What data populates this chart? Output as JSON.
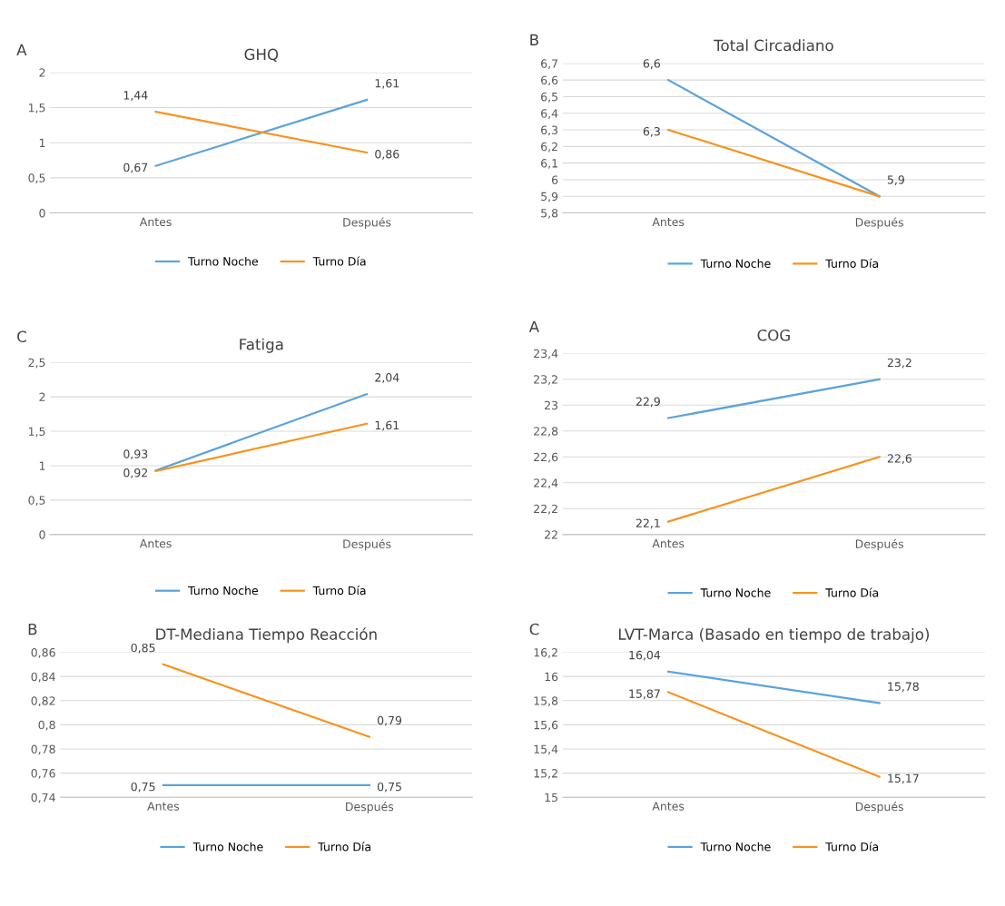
{
  "chart_data": [
    {
      "type": "line",
      "title": "GHQ",
      "annotations": [
        "A"
      ],
      "categories": [
        "Antes",
        "Después"
      ],
      "ylim": [
        0,
        2
      ],
      "yticks": [
        0,
        {
          "value": 0.5,
          "label": "0,5"
        },
        1,
        {
          "value": 1.5,
          "label": "1,5"
        },
        2
      ],
      "grid": "y",
      "legend": "bottom",
      "marker": "none",
      "line_style": "solid",
      "series": [
        {
          "name": "Turno Noche",
          "color": "#5ba3dc",
          "values": [
            0.67,
            1.61
          ],
          "value_labels": [
            "0,67",
            "1,61"
          ]
        },
        {
          "name": "Turno Día",
          "color": "#f7931e",
          "values": [
            1.44,
            0.86
          ],
          "value_labels": [
            "1,44",
            "0,86"
          ]
        }
      ]
    },
    {
      "type": "line",
      "title": "Total Circadiano",
      "annotations": [
        "B"
      ],
      "categories": [
        "Antes",
        "Después"
      ],
      "ylim": [
        5.8,
        6.7
      ],
      "yticks": [
        {
          "value": 5.8,
          "label": "5,8"
        },
        {
          "value": 5.9,
          "label": "5,9"
        },
        {
          "value": 6.0,
          "label": "6"
        },
        {
          "value": 6.1,
          "label": "6,1"
        },
        {
          "value": 6.2,
          "label": "6,2"
        },
        {
          "value": 6.3,
          "label": "6,3"
        },
        {
          "value": 6.4,
          "label": "6,4"
        },
        {
          "value": 6.5,
          "label": "6,5"
        },
        {
          "value": 6.6,
          "label": "6,6"
        },
        {
          "value": 6.7,
          "label": "6,7"
        }
      ],
      "grid": "y",
      "legend": "bottom",
      "marker": "none",
      "line_style": "solid",
      "series": [
        {
          "name": "Turno Noche",
          "color": "#5ba3dc",
          "values": [
            6.6,
            5.9
          ],
          "value_labels": [
            "6,6",
            "5,9"
          ]
        },
        {
          "name": "Turno Día",
          "color": "#f7931e",
          "values": [
            6.3,
            5.9
          ],
          "value_labels": [
            "6,3",
            null
          ]
        }
      ]
    },
    {
      "type": "line",
      "title": "Fatiga",
      "annotations": [
        "C"
      ],
      "categories": [
        "Antes",
        "Después"
      ],
      "ylim": [
        0,
        2.5
      ],
      "yticks": [
        0,
        {
          "value": 0.5,
          "label": "0,5"
        },
        1,
        {
          "value": 1.5,
          "label": "1,5"
        },
        2,
        {
          "value": 2.5,
          "label": "2,5"
        }
      ],
      "grid": "y",
      "legend": "bottom",
      "marker": "none",
      "line_style": "solid",
      "series": [
        {
          "name": "Turno Noche",
          "color": "#5ba3dc",
          "values": [
            0.93,
            2.04
          ],
          "value_labels": [
            "0,93",
            "2,04"
          ]
        },
        {
          "name": "Turno Día",
          "color": "#f7931e",
          "values": [
            0.92,
            1.61
          ],
          "value_labels": [
            "0,92",
            "1,61"
          ]
        }
      ]
    },
    {
      "type": "line",
      "title": "COG",
      "annotations": [
        "A"
      ],
      "categories": [
        "Antes",
        "Después"
      ],
      "ylim": [
        22,
        23.4
      ],
      "yticks": [
        22,
        {
          "value": 22.2,
          "label": "22,2"
        },
        {
          "value": 22.4,
          "label": "22,4"
        },
        {
          "value": 22.6,
          "label": "22,6"
        },
        {
          "value": 22.8,
          "label": "22,8"
        },
        23,
        {
          "value": 23.2,
          "label": "23,2"
        },
        {
          "value": 23.4,
          "label": "23,4"
        }
      ],
      "grid": "y",
      "legend": "bottom",
      "marker": "none",
      "line_style": "solid",
      "series": [
        {
          "name": "Turno Noche",
          "color": "#5ba3dc",
          "values": [
            22.9,
            23.2
          ],
          "value_labels": [
            "22,9",
            "23,2"
          ]
        },
        {
          "name": "Turno Día",
          "color": "#f7931e",
          "values": [
            22.1,
            22.6
          ],
          "value_labels": [
            "22,1",
            "22,6"
          ]
        }
      ]
    },
    {
      "type": "line",
      "title": "DT-Mediana Tiempo Reacción",
      "annotations": [
        "B"
      ],
      "categories": [
        "Antes",
        "Después"
      ],
      "ylim": [
        0.74,
        0.86
      ],
      "yticks": [
        {
          "value": 0.74,
          "label": "0,74"
        },
        {
          "value": 0.76,
          "label": "0,76"
        },
        {
          "value": 0.78,
          "label": "0,78"
        },
        {
          "value": 0.8,
          "label": "0,8"
        },
        {
          "value": 0.82,
          "label": "0,82"
        },
        {
          "value": 0.84,
          "label": "0,84"
        },
        {
          "value": 0.86,
          "label": "0,86"
        }
      ],
      "grid": "y",
      "legend": "bottom",
      "marker": "none",
      "line_style": "solid",
      "series": [
        {
          "name": "Turno Noche",
          "color": "#5ba3dc",
          "values": [
            0.75,
            0.75
          ],
          "value_labels": [
            "0,75",
            "0,75"
          ]
        },
        {
          "name": "Turno Día",
          "color": "#f7931e",
          "values": [
            0.85,
            0.79
          ],
          "value_labels": [
            "0,85",
            "0,79"
          ]
        }
      ]
    },
    {
      "type": "line",
      "title": "LVT-Marca (Basado en tiempo de trabajo)",
      "annotations": [
        "C"
      ],
      "categories": [
        "Antes",
        "Después"
      ],
      "ylim": [
        15,
        16.2
      ],
      "yticks": [
        15,
        {
          "value": 15.2,
          "label": "15,2"
        },
        {
          "value": 15.4,
          "label": "15,4"
        },
        {
          "value": 15.6,
          "label": "15,6"
        },
        {
          "value": 15.8,
          "label": "15,8"
        },
        16,
        {
          "value": 16.2,
          "label": "16,2"
        }
      ],
      "grid": "y",
      "legend": "bottom",
      "marker": "none",
      "line_style": "solid",
      "series": [
        {
          "name": "Turno Noche",
          "color": "#5ba3dc",
          "values": [
            16.04,
            15.78
          ],
          "value_labels": [
            "16,04",
            "15,78"
          ]
        },
        {
          "name": "Turno Día",
          "color": "#f7931e",
          "values": [
            15.87,
            15.17
          ],
          "value_labels": [
            "15,87",
            "15,17"
          ]
        }
      ]
    }
  ]
}
